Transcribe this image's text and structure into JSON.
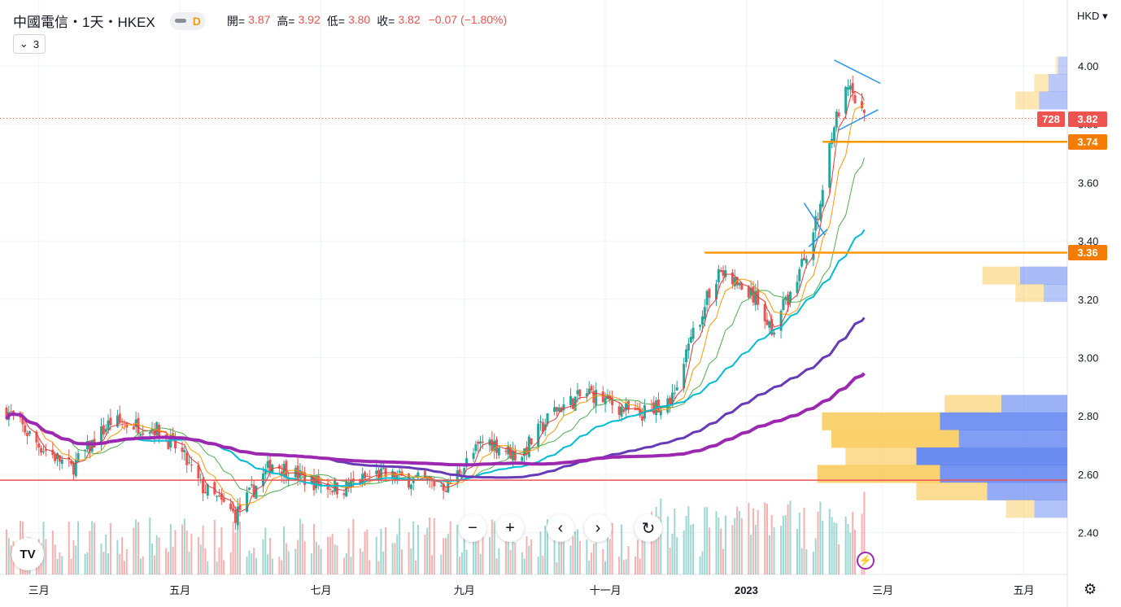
{
  "header": {
    "symbol_title": "中國電信・1天・HKEX",
    "interval_badge": "D",
    "ohlc": [
      {
        "label": "開=",
        "value": "3.87"
      },
      {
        "label": "高=",
        "value": "3.92"
      },
      {
        "label": "低=",
        "value": "3.80"
      },
      {
        "label": "收=",
        "value": "3.82"
      }
    ],
    "change": "−0.07 (−1.80%)",
    "indicator_count": "3"
  },
  "price_axis": {
    "currency": "HKD",
    "ticks": [
      "4.00",
      "3.80",
      "3.60",
      "3.40",
      "3.20",
      "3.00",
      "2.80",
      "2.60",
      "2.40"
    ]
  },
  "price_tags": {
    "volume_tag": "728",
    "last_price": "3.82",
    "level_high": "3.74",
    "level_low": "3.36"
  },
  "time_axis": {
    "labels": [
      "三月",
      "五月",
      "七月",
      "九月",
      "十一月",
      "2023",
      "三月",
      "五月"
    ]
  },
  "toolbar": {
    "zoom_out": "−",
    "zoom_in": "+",
    "scroll_left": "‹",
    "scroll_right": "›",
    "reset": "↻"
  },
  "logo_text": "TV",
  "colors": {
    "up": "#26a69a",
    "down": "#ef5350",
    "level_line": "#ff9800",
    "ma_fast": "#e53935",
    "ma_orange": "#ff9800",
    "ma_green": "#4caf50",
    "ma_cyan": "#00bcd4",
    "ma_purple": "#673ab7",
    "ma_magenta": "#9c27b0",
    "trendline": "#2196f3",
    "profile_up": "#f9c74f",
    "profile_down": "#5b7ff0"
  },
  "chart_data": {
    "type": "candlestick",
    "title": "中國電信・1天・HKEX",
    "ylim": [
      2.3,
      4.05
    ],
    "x_range_months": [
      "2022-02",
      "2023-05"
    ],
    "anchors": [
      [
        "2022-02-15",
        2.82
      ],
      [
        "2022-03-01",
        2.7
      ],
      [
        "2022-03-15",
        2.62
      ],
      [
        "2022-04-01",
        2.78
      ],
      [
        "2022-04-20",
        2.76
      ],
      [
        "2022-05-01",
        2.68
      ],
      [
        "2022-05-10",
        2.56
      ],
      [
        "2022-05-25",
        2.46
      ],
      [
        "2022-06-10",
        2.64
      ],
      [
        "2022-06-25",
        2.58
      ],
      [
        "2022-07-10",
        2.55
      ],
      [
        "2022-07-25",
        2.6
      ],
      [
        "2022-08-10",
        2.58
      ],
      [
        "2022-08-25",
        2.56
      ],
      [
        "2022-09-10",
        2.72
      ],
      [
        "2022-09-25",
        2.66
      ],
      [
        "2022-10-10",
        2.82
      ],
      [
        "2022-10-25",
        2.88
      ],
      [
        "2022-11-15",
        2.8
      ],
      [
        "2022-11-30",
        2.86
      ],
      [
        "2022-12-10",
        3.1
      ],
      [
        "2022-12-20",
        3.3
      ],
      [
        "2023-01-05",
        3.2
      ],
      [
        "2023-01-12",
        3.1
      ],
      [
        "2023-01-22",
        3.25
      ],
      [
        "2023-02-01",
        3.48
      ],
      [
        "2023-02-07",
        3.78
      ],
      [
        "2023-02-14",
        3.92
      ],
      [
        "2023-02-21",
        3.82
      ]
    ],
    "levels": [
      {
        "price": 3.74,
        "from": "2023-02-03"
      },
      {
        "price": 3.36,
        "from": "2022-12-14"
      },
      {
        "price": 2.58,
        "from": "2022-02-01",
        "color": "red"
      }
    ],
    "volume_profile": [
      {
        "price": 4.0,
        "up": 0.05,
        "down": 0.2
      },
      {
        "price": 3.94,
        "up": 0.3,
        "down": 0.4
      },
      {
        "price": 3.88,
        "up": 0.5,
        "down": 0.6
      },
      {
        "price": 3.28,
        "up": 0.8,
        "down": 1.0
      },
      {
        "price": 3.22,
        "up": 0.6,
        "down": 0.5
      },
      {
        "price": 2.84,
        "up": 1.2,
        "down": 1.4
      },
      {
        "price": 2.78,
        "up": 2.5,
        "down": 2.7
      },
      {
        "price": 2.72,
        "up": 2.7,
        "down": 2.3
      },
      {
        "price": 2.66,
        "up": 1.5,
        "down": 3.2
      },
      {
        "price": 2.6,
        "up": 2.6,
        "down": 2.7
      },
      {
        "price": 2.54,
        "up": 1.5,
        "down": 1.7
      },
      {
        "price": 2.48,
        "up": 0.6,
        "down": 0.7
      }
    ]
  }
}
